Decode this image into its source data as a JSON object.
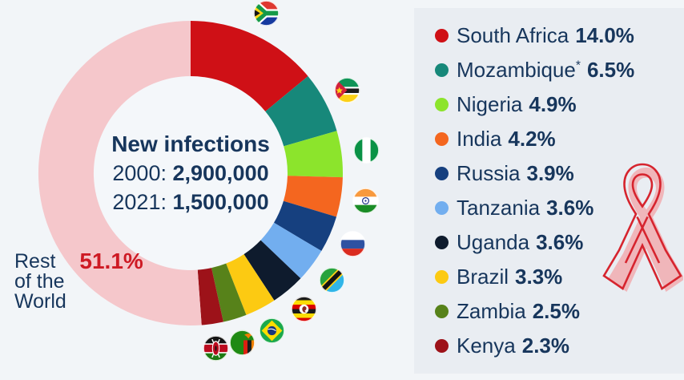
{
  "page": {
    "background": "#f2f5f8",
    "panel_background": "#e9edf2",
    "text_color": "#17365c"
  },
  "chart_data": {
    "type": "donut",
    "start_angle": "top",
    "direction": "clockwise",
    "legend_position": "right",
    "center_label": {
      "title": "New infections",
      "rows": [
        {
          "label": "2000:",
          "value": "2,900,000"
        },
        {
          "label": "2021:",
          "value": "1,500,000"
        }
      ]
    },
    "series": [
      {
        "label": "South Africa",
        "value": 14.0,
        "display": "14.0%",
        "color": "#cf1016",
        "flag": "flag-south-africa"
      },
      {
        "label": "Mozambique",
        "sup": "*",
        "value": 6.5,
        "display": "6.5%",
        "color": "#17887a",
        "flag": "flag-mozambique"
      },
      {
        "label": "Nigeria",
        "value": 4.9,
        "display": "4.9%",
        "color": "#8ce42c",
        "flag": "flag-nigeria"
      },
      {
        "label": "India",
        "value": 4.2,
        "display": "4.2%",
        "color": "#f4661f",
        "flag": "flag-india"
      },
      {
        "label": "Russia",
        "value": 3.9,
        "display": "3.9%",
        "color": "#16407f",
        "flag": "flag-russia"
      },
      {
        "label": "Tanzania",
        "value": 3.6,
        "display": "3.6%",
        "color": "#72aeef",
        "flag": "flag-tanzania"
      },
      {
        "label": "Uganda",
        "value": 3.6,
        "display": "3.6%",
        "color": "#0e1b2d",
        "flag": "flag-uganda"
      },
      {
        "label": "Brazil",
        "value": 3.3,
        "display": "3.3%",
        "color": "#fcca12",
        "flag": "flag-brazil"
      },
      {
        "label": "Zambia",
        "value": 2.5,
        "display": "2.5%",
        "color": "#57821a",
        "flag": "flag-zambia"
      },
      {
        "label": "Kenya",
        "value": 2.3,
        "display": "2.3%",
        "color": "#9d1219",
        "flag": "flag-kenya"
      },
      {
        "label": "Rest of the World",
        "value": 51.1,
        "display": "51.1%",
        "color": "#f5c7cb",
        "in_legend": false
      }
    ],
    "callout": {
      "word_top": "Rest",
      "word_mid": "of the",
      "word_bottom": "World",
      "percent": "51.1%",
      "percent_color": "#ce1a24"
    }
  },
  "icons": {
    "ribbon": "red-awareness-ribbon",
    "ribbon_fill": "#f0b6ba",
    "ribbon_stroke": "#d6242e"
  }
}
